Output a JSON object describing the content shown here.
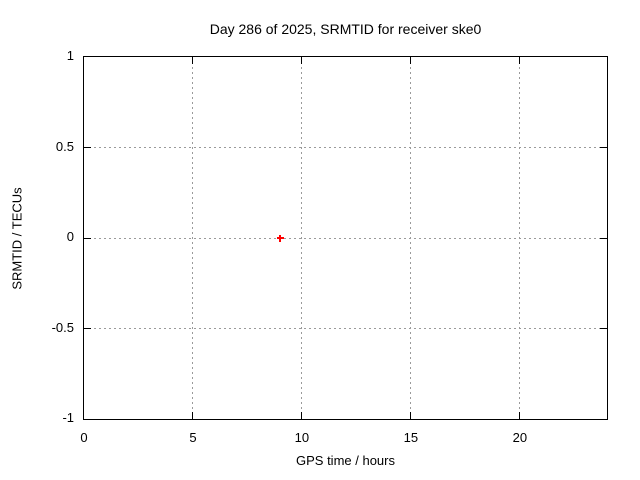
{
  "window": {
    "background": "#ffffff"
  },
  "chart_data": {
    "type": "scatter",
    "title": "Day 286 of 2025, SRMTID for receiver ske0",
    "xlabel": "GPS time / hours",
    "ylabel": "SRMTID / TECUs",
    "xlim": [
      0,
      24
    ],
    "ylim": [
      -1,
      1
    ],
    "xticks": [
      {
        "value": 0,
        "label": "0"
      },
      {
        "value": 5,
        "label": "5"
      },
      {
        "value": 10,
        "label": "10"
      },
      {
        "value": 15,
        "label": "15"
      },
      {
        "value": 20,
        "label": "20"
      }
    ],
    "yticks": [
      {
        "value": 1,
        "label": "1"
      },
      {
        "value": 0.5,
        "label": "0.5"
      },
      {
        "value": 0,
        "label": "0"
      },
      {
        "value": -0.5,
        "label": "-0.5"
      },
      {
        "value": -1,
        "label": "-1"
      }
    ],
    "grid": true,
    "grid_style": "dotted",
    "ticks_mirrored": true,
    "legend": "none",
    "colors": {
      "axis": "#000000",
      "grid": "#9a9a9a",
      "text": "#000000",
      "background": "#ffffff"
    },
    "series": [
      {
        "name": "SRMTID",
        "marker": "plus",
        "color": "#ff0000",
        "points": [
          {
            "x": 9,
            "y": 0
          }
        ]
      }
    ]
  }
}
